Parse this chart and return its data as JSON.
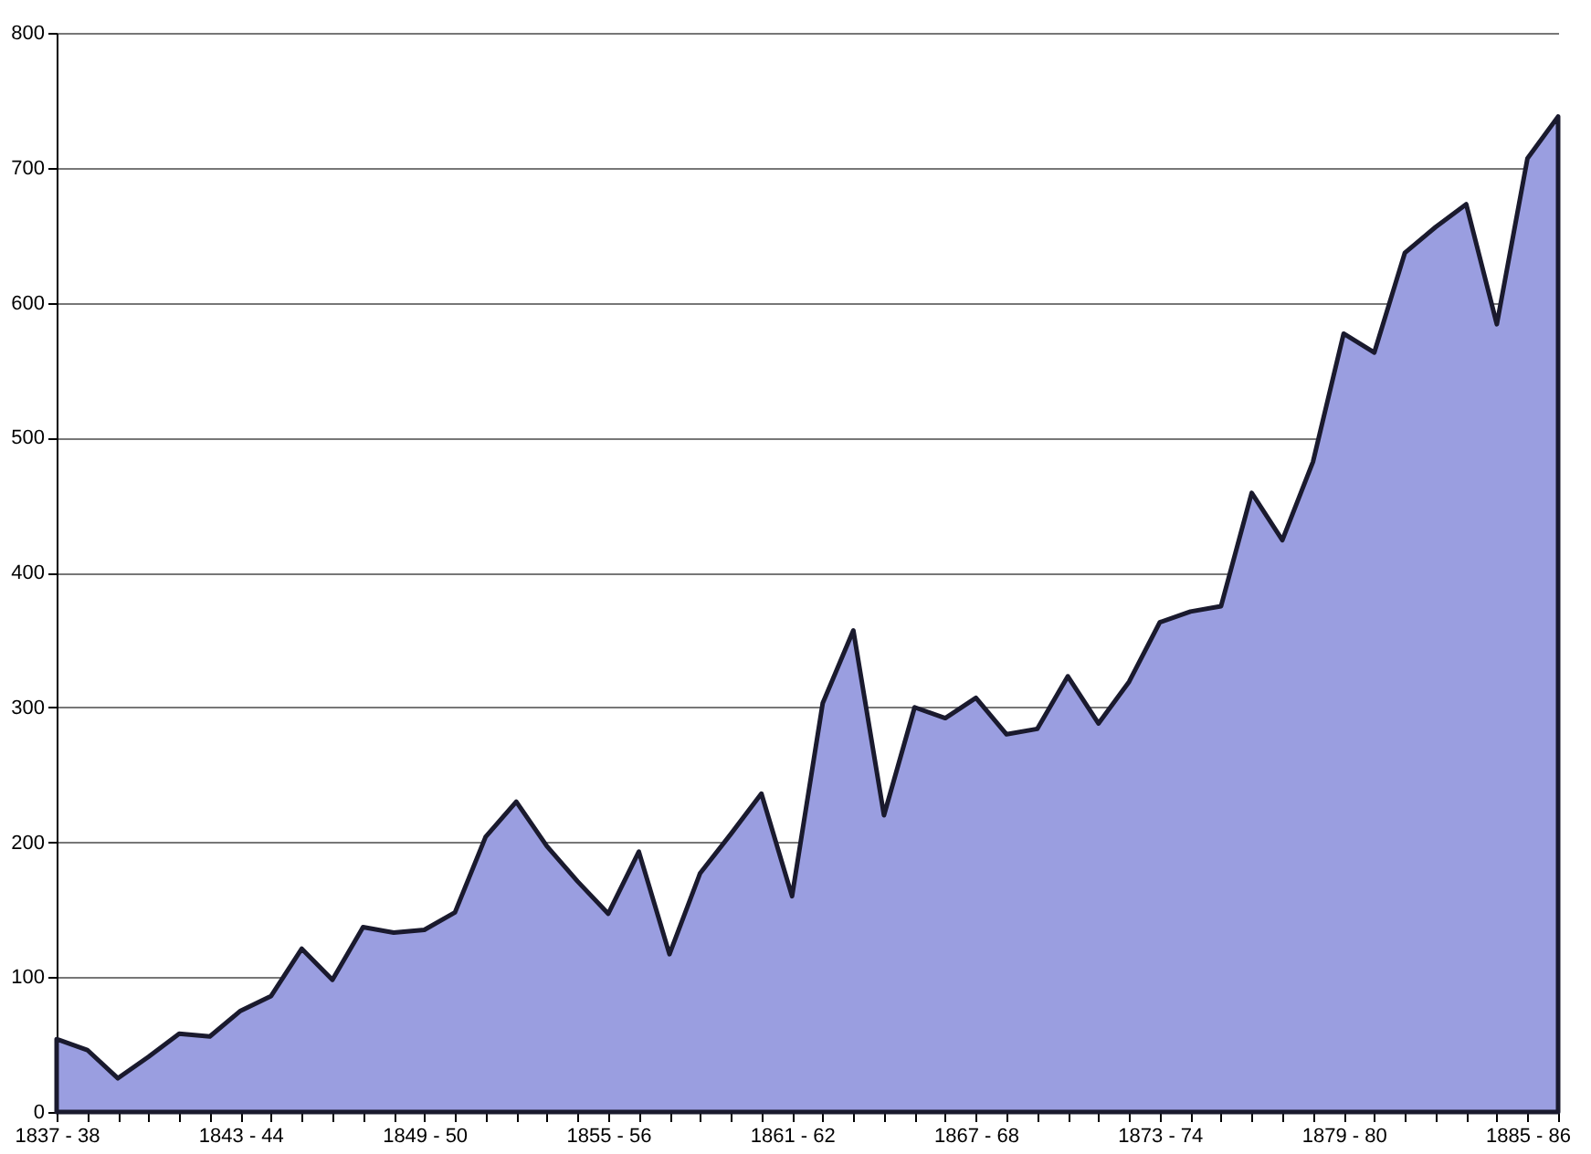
{
  "chart_data": {
    "type": "area",
    "categories": [
      "1837 - 38",
      null,
      null,
      null,
      null,
      null,
      "1843 - 44",
      null,
      null,
      null,
      null,
      null,
      "1849 - 50",
      null,
      null,
      null,
      null,
      null,
      "1855 - 56",
      null,
      null,
      null,
      null,
      null,
      "1861 - 62",
      null,
      null,
      null,
      null,
      null,
      "1867 - 68",
      null,
      null,
      null,
      null,
      null,
      "1873 - 74",
      null,
      null,
      null,
      null,
      null,
      "1879 - 80",
      null,
      null,
      null,
      null,
      null,
      "1885 - 86",
      null
    ],
    "series": [
      {
        "color": "#9a9ee0",
        "values": [
          54,
          46,
          25,
          41,
          58,
          56,
          75,
          86,
          121,
          98,
          137,
          133,
          135,
          148,
          204,
          230,
          197,
          171,
          147,
          193,
          117,
          177,
          206,
          236,
          160,
          303,
          357,
          220,
          300,
          292,
          307,
          280,
          284,
          323,
          288,
          319,
          363,
          371,
          375,
          459,
          424,
          482,
          577,
          563,
          637,
          656,
          673,
          584,
          707,
          738
        ]
      }
    ],
    "ylim": [
      0,
      800
    ],
    "yticks": [
      0,
      100,
      200,
      300,
      400,
      500,
      600,
      700,
      800
    ],
    "grid": "y"
  }
}
